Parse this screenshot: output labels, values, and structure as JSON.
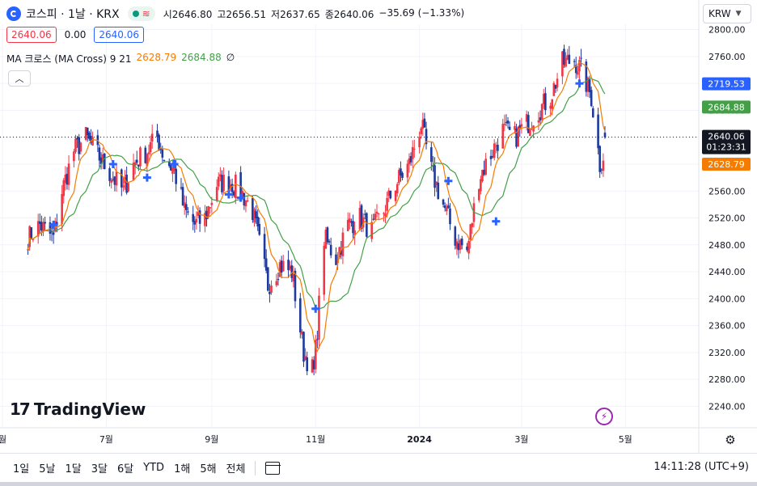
{
  "header": {
    "symbol_title": "코스피 · 1날 · KRX",
    "open_label": "시",
    "open_value": "2646.80",
    "high_label": "고",
    "high_value": "2656.51",
    "low_label": "저",
    "low_value": "2637.65",
    "close_label": "종",
    "close_value": "2640.06",
    "change": "−35.69 (−1.33%)",
    "wave_glyph": "≋"
  },
  "price_row": {
    "sell": "2640.06",
    "spread": "0.00",
    "buy": "2640.06"
  },
  "indicator": {
    "name": "MA 크로스 (MA Cross) 9 21",
    "fast_value": "2628.79",
    "slow_value": "2684.88",
    "extra": "∅"
  },
  "currency": "KRW",
  "brand": "TradingView",
  "bottom_bar": {
    "ranges": [
      "1일",
      "5날",
      "1달",
      "3달",
      "6달",
      "YTD",
      "1해",
      "5해",
      "전체"
    ],
    "clock": "14:11:28 (UTC+9)"
  },
  "chart_data": {
    "type": "candlestick",
    "title": "코스피 · 1날 · KRX",
    "yaxis": {
      "ticks": [
        2240,
        2280,
        2320,
        2360,
        2400,
        2440,
        2480,
        2520,
        2560,
        2600,
        2640,
        2680,
        2720,
        2760,
        2800
      ],
      "tick_labels": [
        "2240.00",
        "2280.00",
        "2320.00",
        "2360.00",
        "2400.00",
        "2440.00",
        "2480.00",
        "2520.00",
        "2560.00",
        "2600.00",
        "2640.00",
        "2680.00",
        "2720.00",
        "2760.00",
        "2800.00"
      ],
      "range": [
        2208,
        2808
      ]
    },
    "xaxis": {
      "labels": [
        "월",
        "7월",
        "9월",
        "11월",
        "2024",
        "3월",
        "5월"
      ],
      "label_dates": [
        "2023-05",
        "2023-07",
        "2023-09",
        "2023-11",
        "2024-01",
        "2024-03",
        "2024-05"
      ],
      "range": [
        "2023-05",
        "2024-04-19"
      ]
    },
    "colors": {
      "up": "#f23645",
      "down": "#1e3a9e",
      "ma_fast": "#f57c00",
      "ma_slow": "#43a047",
      "cross": "#2962ff"
    },
    "anchors": [
      [
        "2023-05-16",
        2490
      ],
      [
        "2023-05-23",
        2510
      ],
      [
        "2023-05-31",
        2490
      ],
      [
        "2023-06-05",
        2560
      ],
      [
        "2023-06-12",
        2620
      ],
      [
        "2023-06-19",
        2640
      ],
      [
        "2023-06-27",
        2610
      ],
      [
        "2023-07-05",
        2580
      ],
      [
        "2023-07-11",
        2560
      ],
      [
        "2023-07-17",
        2600
      ],
      [
        "2023-07-25",
        2620
      ],
      [
        "2023-07-31",
        2640
      ],
      [
        "2023-08-04",
        2610
      ],
      [
        "2023-08-10",
        2590
      ],
      [
        "2023-08-16",
        2530
      ],
      [
        "2023-08-22",
        2510
      ],
      [
        "2023-08-28",
        2520
      ],
      [
        "2023-09-04",
        2570
      ],
      [
        "2023-09-11",
        2575
      ],
      [
        "2023-09-18",
        2560
      ],
      [
        "2023-09-25",
        2530
      ],
      [
        "2023-10-04",
        2420
      ],
      [
        "2023-10-11",
        2450
      ],
      [
        "2023-10-18",
        2440
      ],
      [
        "2023-10-25",
        2320
      ],
      [
        "2023-10-31",
        2290
      ],
      [
        "2023-11-06",
        2490
      ],
      [
        "2023-11-13",
        2460
      ],
      [
        "2023-11-20",
        2510
      ],
      [
        "2023-11-27",
        2520
      ],
      [
        "2023-12-04",
        2500
      ],
      [
        "2023-12-11",
        2530
      ],
      [
        "2023-12-18",
        2570
      ],
      [
        "2023-12-26",
        2600
      ],
      [
        "2024-01-02",
        2660
      ],
      [
        "2024-01-08",
        2590
      ],
      [
        "2024-01-15",
        2540
      ],
      [
        "2024-01-22",
        2490
      ],
      [
        "2024-01-29",
        2470
      ],
      [
        "2024-02-05",
        2580
      ],
      [
        "2024-02-13",
        2620
      ],
      [
        "2024-02-19",
        2650
      ],
      [
        "2024-02-26",
        2640
      ],
      [
        "2024-03-04",
        2660
      ],
      [
        "2024-03-11",
        2680
      ],
      [
        "2024-03-18",
        2700
      ],
      [
        "2024-03-25",
        2750
      ],
      [
        "2024-04-01",
        2755
      ],
      [
        "2024-04-05",
        2740
      ],
      [
        "2024-04-11",
        2700
      ],
      [
        "2024-04-16",
        2600
      ],
      [
        "2024-04-19",
        2620
      ]
    ],
    "last": {
      "date": "2024-04-19",
      "open": 2646.8,
      "high": 2656.51,
      "low": 2637.65,
      "close": 2640.06
    },
    "crosses": [
      [
        "2023-05-31",
        2510
      ],
      [
        "2023-07-05",
        2600
      ],
      [
        "2023-07-25",
        2580
      ],
      [
        "2023-08-10",
        2600
      ],
      [
        "2023-09-11",
        2555
      ],
      [
        "2023-09-18",
        2550
      ],
      [
        "2023-11-01",
        2385
      ],
      [
        "2024-01-18",
        2575
      ],
      [
        "2024-02-15",
        2515
      ],
      [
        "2024-04-04",
        2720
      ]
    ],
    "series": [
      {
        "name": "MA 9",
        "last_value": 2628.79
      },
      {
        "name": "MA 21",
        "last_value": 2684.88
      }
    ],
    "price_labels": {
      "crosshair_price": "2719.53",
      "ma_slow": "2684.88",
      "last": "2640.06",
      "countdown": "01:23:31",
      "ma_fast": "2628.79"
    },
    "grid": true,
    "last_price_line": "dotted"
  }
}
